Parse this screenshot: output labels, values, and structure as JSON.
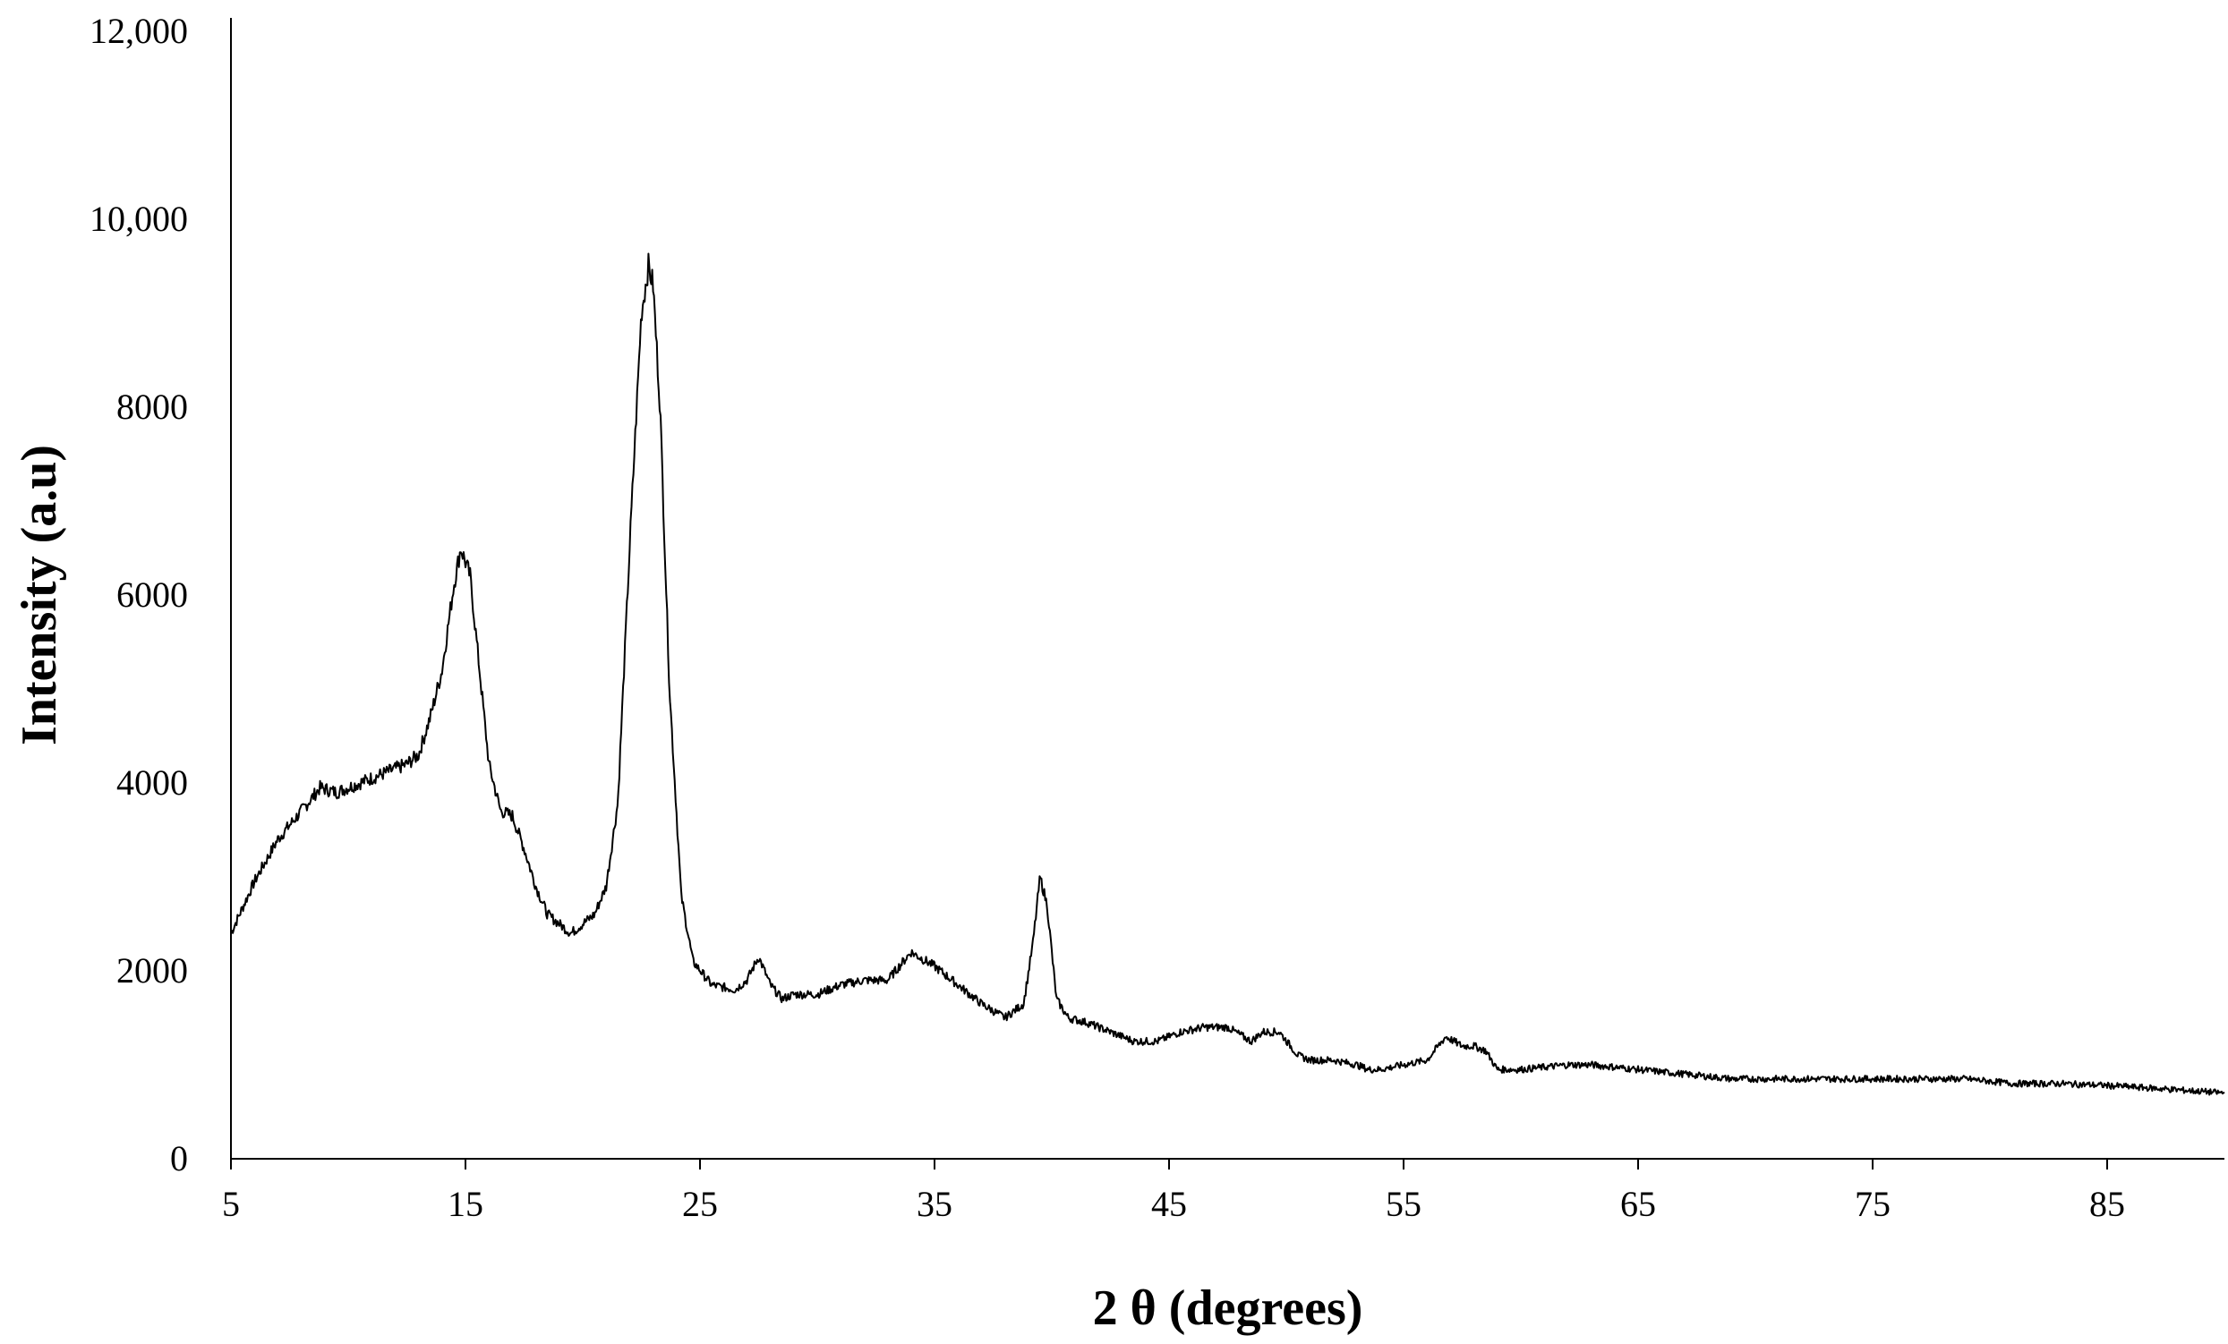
{
  "chart_data": {
    "type": "line",
    "title": "",
    "xlabel": "2 θ (degrees)",
    "ylabel": "Intensity (a.u)",
    "xlim": [
      5,
      90
    ],
    "ylim": [
      0,
      12000
    ],
    "x_ticks": [
      5,
      15,
      25,
      35,
      45,
      55,
      65,
      75,
      85
    ],
    "x_tick_labels": [
      "5",
      "15",
      "25",
      "35",
      "45",
      "55",
      "65",
      "75",
      "85"
    ],
    "y_ticks": [
      0,
      2000,
      4000,
      6000,
      8000,
      10000,
      12000
    ],
    "y_tick_labels": [
      "0",
      "2000",
      "4000",
      "6000",
      "8000",
      "10,000",
      "12,000"
    ],
    "grid": false,
    "legend": "none",
    "line_color": "#000000",
    "series": [
      {
        "x": [
          5,
          6,
          7,
          8,
          8.8,
          9.5,
          10.5,
          11.5,
          12.5,
          13,
          13.5,
          14,
          14.5,
          14.8,
          15.2,
          15.6,
          16,
          16.5,
          17,
          17.5,
          18,
          18.5,
          19,
          19.5,
          20,
          20.5,
          21,
          21.5,
          22,
          22.5,
          22.8,
          23,
          23.3,
          23.7,
          24.2,
          24.7,
          25.5,
          26.5,
          27,
          27.5,
          28,
          28.5,
          29,
          30,
          31,
          32,
          33,
          34,
          35,
          36,
          37,
          38,
          38.8,
          39.2,
          39.5,
          39.8,
          40.2,
          40.7,
          41.5,
          42.5,
          43.5,
          44.5,
          45.5,
          46.5,
          47.5,
          48.5,
          49,
          49.7,
          50.5,
          51,
          52,
          53,
          53.5,
          54,
          55,
          56,
          56.8,
          57.5,
          58,
          58.5,
          59,
          60,
          62,
          63,
          65,
          67,
          69,
          71,
          73,
          75,
          77,
          79,
          81,
          83,
          85,
          87,
          90
        ],
        "y": [
          2400,
          2950,
          3400,
          3700,
          3950,
          3900,
          4000,
          4100,
          4200,
          4300,
          4700,
          5200,
          6100,
          6500,
          6200,
          5200,
          4200,
          3700,
          3650,
          3300,
          2900,
          2600,
          2500,
          2400,
          2500,
          2600,
          2900,
          3800,
          6500,
          9000,
          9500,
          9300,
          8000,
          5000,
          2800,
          2100,
          1850,
          1800,
          1900,
          2150,
          1850,
          1700,
          1750,
          1750,
          1850,
          1900,
          1900,
          2200,
          2050,
          1850,
          1650,
          1500,
          1650,
          2300,
          3000,
          2700,
          1700,
          1500,
          1450,
          1350,
          1250,
          1250,
          1350,
          1400,
          1400,
          1250,
          1350,
          1350,
          1100,
          1050,
          1050,
          1000,
          950,
          950,
          1000,
          1050,
          1300,
          1200,
          1200,
          1150,
          950,
          950,
          1000,
          1000,
          950,
          900,
          850,
          850,
          850,
          850,
          850,
          850,
          800,
          800,
          780,
          750,
          700
        ]
      }
    ]
  }
}
